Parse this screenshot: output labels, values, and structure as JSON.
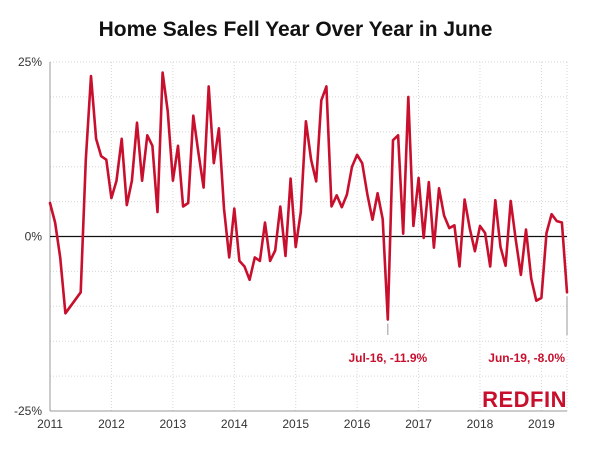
{
  "chart_data": {
    "type": "line",
    "title": "Home Sales Fell Year Over Year in June",
    "xlabel": "",
    "ylabel": "",
    "ylim": [
      -25,
      25
    ],
    "y_ticks": [
      {
        "value": 25,
        "label": "25%"
      },
      {
        "value": 0,
        "label": "0%"
      },
      {
        "value": -25,
        "label": "-25%"
      }
    ],
    "x_range": [
      "2011-01",
      "2019-06"
    ],
    "x_ticks": [
      "2011",
      "2012",
      "2013",
      "2014",
      "2015",
      "2016",
      "2017",
      "2018",
      "2019"
    ],
    "grid": "dotted",
    "line_color": "#c8102e",
    "series": [
      {
        "x": [
          "2011-01",
          "2011-02",
          "2011-03",
          "2011-04",
          "2011-05",
          "2011-06",
          "2011-07",
          "2011-08",
          "2011-09",
          "2011-10",
          "2011-11",
          "2011-12",
          "2012-01",
          "2012-02",
          "2012-03",
          "2012-04",
          "2012-05",
          "2012-06",
          "2012-07",
          "2012-08",
          "2012-09",
          "2012-10",
          "2012-11",
          "2012-12",
          "2013-01",
          "2013-02",
          "2013-03",
          "2013-04",
          "2013-05",
          "2013-06",
          "2013-07",
          "2013-08",
          "2013-09",
          "2013-10",
          "2013-11",
          "2013-12",
          "2014-01",
          "2014-02",
          "2014-03",
          "2014-04",
          "2014-05",
          "2014-06",
          "2014-07",
          "2014-08",
          "2014-09",
          "2014-10",
          "2014-11",
          "2014-12",
          "2015-01",
          "2015-02",
          "2015-03",
          "2015-04",
          "2015-05",
          "2015-06",
          "2015-07",
          "2015-08",
          "2015-09",
          "2015-10",
          "2015-11",
          "2015-12",
          "2016-01",
          "2016-02",
          "2016-03",
          "2016-04",
          "2016-05",
          "2016-06",
          "2016-07",
          "2016-08",
          "2016-09",
          "2016-10",
          "2016-11",
          "2016-12",
          "2017-01",
          "2017-02",
          "2017-03",
          "2017-04",
          "2017-05",
          "2017-06",
          "2017-07",
          "2017-08",
          "2017-09",
          "2017-10",
          "2017-11",
          "2017-12",
          "2018-01",
          "2018-02",
          "2018-03",
          "2018-04",
          "2018-05",
          "2018-06",
          "2018-07",
          "2018-08",
          "2018-09",
          "2018-10",
          "2018-11",
          "2018-12",
          "2019-01",
          "2019-02",
          "2019-03",
          "2019-04",
          "2019-05",
          "2019-06"
        ],
        "values": [
          4.8,
          2.0,
          -3.0,
          -11.0,
          -10.0,
          -9.0,
          -8.0,
          11.0,
          23.0,
          14.0,
          11.5,
          11.0,
          5.5,
          8.0,
          14.0,
          4.5,
          8.0,
          16.3,
          8.0,
          14.5,
          13.0,
          3.5,
          23.5,
          18.0,
          8.0,
          13.0,
          4.3,
          4.8,
          17.3,
          12.0,
          7.0,
          21.5,
          10.5,
          15.5,
          4.0,
          -3.0,
          4.0,
          -3.5,
          -4.3,
          -6.2,
          -3.0,
          -3.5,
          2.0,
          -3.5,
          -2.0,
          4.3,
          -2.8,
          8.3,
          -1.5,
          3.5,
          16.5,
          11.0,
          7.9,
          19.5,
          21.5,
          4.3,
          5.9,
          4.2,
          6.0,
          10.0,
          11.7,
          10.5,
          6.0,
          2.4,
          6.2,
          2.5,
          -11.9,
          13.8,
          14.5,
          0.4,
          20.0,
          1.5,
          8.4,
          -0.2,
          7.8,
          -1.6,
          6.9,
          3.0,
          1.2,
          1.6,
          -4.3,
          5.3,
          1.2,
          -2.1,
          1.5,
          0.5,
          -4.3,
          5.2,
          -1.5,
          -4.2,
          5.1,
          -0.5,
          -5.5,
          1.0,
          -6.0,
          -9.2,
          -8.8,
          0.5,
          3.2,
          2.2,
          2.0,
          -8.0
        ]
      }
    ],
    "annotations": [
      {
        "label": "Jul-16, -11.9%",
        "x": "2016-07",
        "y": -11.9
      },
      {
        "label": "Jun-19, -8.0%",
        "x": "2019-06",
        "y": -8.0
      }
    ]
  },
  "brand": {
    "logo_text": "REDFIN",
    "color": "#c8102e"
  }
}
